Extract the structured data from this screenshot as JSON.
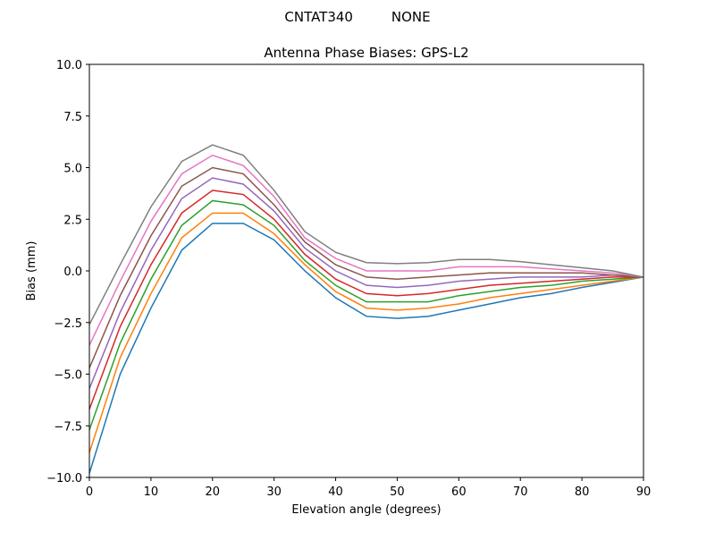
{
  "chart_data": {
    "type": "line",
    "suptitle": "CNTAT340         NONE",
    "title": "Antenna Phase Biases: GPS-L2",
    "xlabel": "Elevation angle (degrees)",
    "ylabel": "Bias (mm)",
    "xlim": [
      0,
      90
    ],
    "ylim": [
      -10,
      10
    ],
    "xticks": [
      "0",
      "10",
      "20",
      "30",
      "40",
      "50",
      "60",
      "70",
      "80",
      "90"
    ],
    "yticks": [
      "10.0",
      "7.5",
      "5.0",
      "2.5",
      "0.0",
      "−2.5",
      "−5.0",
      "−7.5",
      "−10.0"
    ],
    "grid": false,
    "x": [
      0,
      5,
      10,
      15,
      20,
      25,
      30,
      35,
      40,
      45,
      50,
      55,
      60,
      65,
      70,
      75,
      80,
      85,
      90
    ],
    "colors": [
      "#1f77b4",
      "#ff7f0e",
      "#2ca02c",
      "#d62728",
      "#9467bd",
      "#8c564b",
      "#e377c2",
      "#7f7f7f",
      "#bcbd22",
      "#17becf"
    ],
    "series": [
      {
        "values": [
          -9.8,
          -5.0,
          -1.8,
          1.0,
          2.3,
          2.3,
          1.5,
          0.0,
          -1.3,
          -2.2,
          -2.3,
          -2.2,
          -1.9,
          -1.6,
          -1.3,
          -1.1,
          -0.8,
          -0.55,
          -0.3
        ]
      },
      {
        "values": [
          -8.8,
          -4.2,
          -1.1,
          1.6,
          2.8,
          2.8,
          1.8,
          0.3,
          -1.0,
          -1.8,
          -1.9,
          -1.8,
          -1.6,
          -1.3,
          -1.1,
          -0.9,
          -0.7,
          -0.5,
          -0.3
        ]
      },
      {
        "values": [
          -7.7,
          -3.5,
          -0.4,
          2.2,
          3.4,
          3.2,
          2.2,
          0.5,
          -0.7,
          -1.5,
          -1.5,
          -1.5,
          -1.2,
          -1.0,
          -0.8,
          -0.7,
          -0.5,
          -0.4,
          -0.3
        ]
      },
      {
        "values": [
          -6.7,
          -2.7,
          0.3,
          2.8,
          3.9,
          3.7,
          2.5,
          0.8,
          -0.4,
          -1.1,
          -1.2,
          -1.1,
          -0.9,
          -0.7,
          -0.6,
          -0.5,
          -0.4,
          -0.3,
          -0.3
        ]
      },
      {
        "values": [
          -5.7,
          -2.0,
          1.0,
          3.5,
          4.5,
          4.2,
          2.9,
          1.1,
          0.0,
          -0.7,
          -0.8,
          -0.7,
          -0.5,
          -0.4,
          -0.3,
          -0.3,
          -0.3,
          -0.2,
          -0.3
        ]
      },
      {
        "values": [
          -4.7,
          -1.2,
          1.7,
          4.1,
          5.0,
          4.7,
          3.2,
          1.4,
          0.3,
          -0.3,
          -0.4,
          -0.3,
          -0.2,
          -0.1,
          -0.1,
          -0.1,
          -0.1,
          -0.2,
          -0.3
        ]
      },
      {
        "values": [
          -3.6,
          -0.5,
          2.4,
          4.7,
          5.6,
          5.1,
          3.6,
          1.6,
          0.6,
          0.0,
          0.0,
          0.0,
          0.2,
          0.2,
          0.2,
          0.1,
          0.0,
          -0.1,
          -0.3
        ]
      },
      {
        "values": [
          -2.6,
          0.3,
          3.1,
          5.3,
          6.1,
          5.6,
          3.9,
          1.9,
          0.9,
          0.4,
          0.35,
          0.4,
          0.55,
          0.55,
          0.45,
          0.3,
          0.15,
          0.0,
          -0.3
        ]
      }
    ]
  }
}
